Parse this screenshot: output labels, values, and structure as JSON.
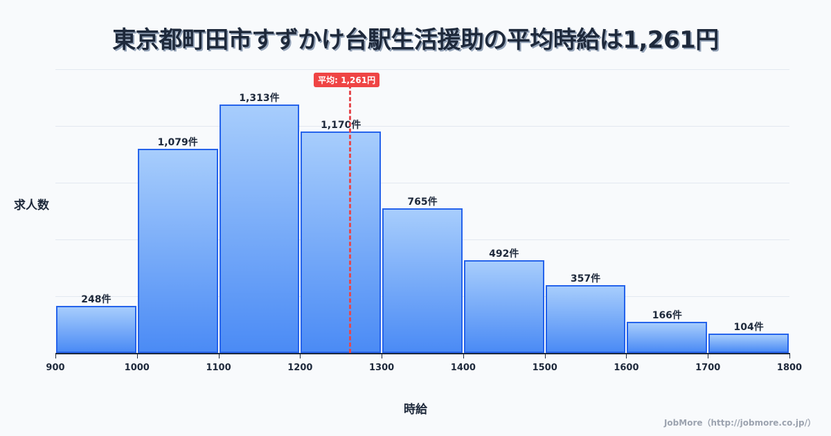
{
  "title": "東京都町田市すずかけ台駅生活援助の平均時給は1,261円",
  "chart_data": {
    "type": "bar",
    "title": "東京都町田市すずかけ台駅生活援助の平均時給は1,261円",
    "xlabel": "時給",
    "ylabel": "求人数",
    "categories": [
      "900-1000",
      "1000-1100",
      "1100-1200",
      "1200-1300",
      "1300-1400",
      "1400-1500",
      "1500-1600",
      "1600-1700",
      "1700-1800"
    ],
    "values": [
      248,
      1079,
      1313,
      1170,
      765,
      492,
      357,
      166,
      104
    ],
    "value_labels": [
      "248件",
      "1,079件",
      "1,313件",
      "1,170件",
      "765件",
      "492件",
      "357件",
      "166件",
      "104件"
    ],
    "x_ticks": [
      "900",
      "1000",
      "1100",
      "1200",
      "1300",
      "1400",
      "1500",
      "1600",
      "1700",
      "1800"
    ],
    "xlim": [
      900,
      1800
    ],
    "ylim": [
      0,
      1500
    ],
    "grid": true,
    "mean": {
      "value": 1261,
      "label": "平均: 1,261円",
      "color": "#ef4444"
    },
    "bar_color": "#4b8bf5",
    "bar_border_color": "#2563eb"
  },
  "mean_label": "平均: 1,261円",
  "ylabel": "求人数",
  "xlabel": "時給",
  "credit": "JobMore（http://jobmore.co.jp/）"
}
